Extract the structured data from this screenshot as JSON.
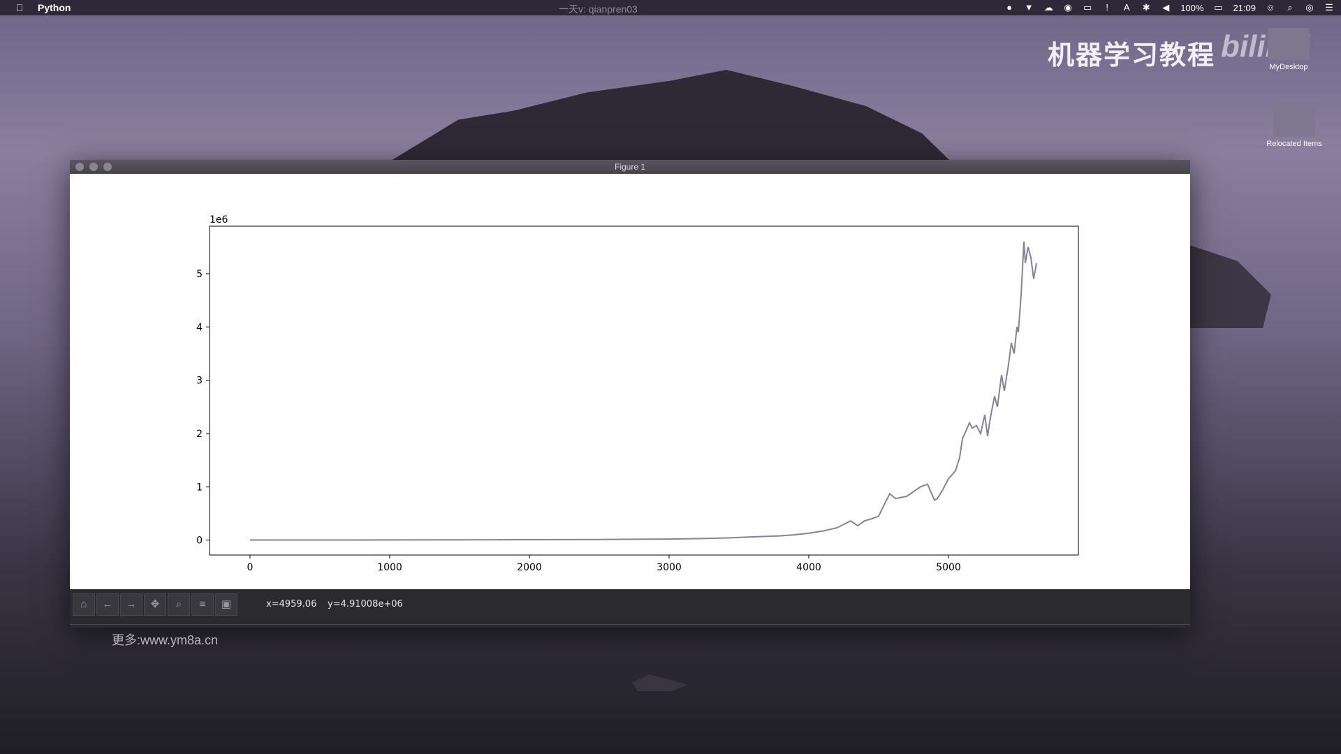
{
  "menubar": {
    "apple_icon": "apple-icon",
    "app_name": "Python",
    "center_text": "一天v: qianpren03",
    "battery": "100%",
    "time": "21:09"
  },
  "watermark": {
    "title": "机器学习教程",
    "logo": "bilibili"
  },
  "desktop_icons": [
    {
      "label": "MyDesktop"
    },
    {
      "label": "Relocated Items"
    }
  ],
  "window": {
    "title": "Figure 1"
  },
  "toolbar": {
    "coord_x": "x=4959.06",
    "coord_y": "y=4.91008e+06"
  },
  "more_link": "更多:www.ym8a.cn",
  "chart_data": {
    "type": "line",
    "title": "",
    "xlabel": "",
    "ylabel": "",
    "y_offset_text": "1e6",
    "xlim": [
      -290,
      5930
    ],
    "ylim": [
      -280000,
      5890000
    ],
    "xticks": [
      0,
      1000,
      2000,
      3000,
      4000,
      5000
    ],
    "yticks": [
      0,
      1,
      2,
      3,
      4,
      5
    ],
    "grid": false,
    "color": "#8b7f96",
    "series": [
      {
        "x": [
          0,
          500,
          1000,
          1500,
          2000,
          2500,
          3000,
          3200,
          3400,
          3600,
          3800,
          3900,
          4000,
          4100,
          4200,
          4300,
          4350,
          4400,
          4450,
          4500,
          4550,
          4580,
          4620,
          4700,
          4800,
          4850,
          4900,
          4920,
          4960,
          5000,
          5050,
          5080,
          5100,
          5150,
          5170,
          5200,
          5230,
          5260,
          5280,
          5300,
          5330,
          5350,
          5380,
          5400,
          5430,
          5450,
          5470,
          5490,
          5500,
          5520,
          5540,
          5550,
          5570,
          5590,
          5610,
          5630
        ],
        "y": [
          1000,
          2000,
          3000,
          5000,
          8000,
          12000,
          20000,
          28000,
          40000,
          60000,
          80000,
          100000,
          130000,
          170000,
          230000,
          360000,
          270000,
          360000,
          400000,
          450000,
          720000,
          870000,
          780000,
          820000,
          1000000,
          1050000,
          750000,
          780000,
          950000,
          1150000,
          1300000,
          1550000,
          1900000,
          2200000,
          2100000,
          2150000,
          2000000,
          2350000,
          1950000,
          2300000,
          2700000,
          2500000,
          3100000,
          2800000,
          3300000,
          3700000,
          3500000,
          4000000,
          3900000,
          4600000,
          5600000,
          5200000,
          5500000,
          5300000,
          4900000,
          5200000
        ]
      }
    ]
  }
}
